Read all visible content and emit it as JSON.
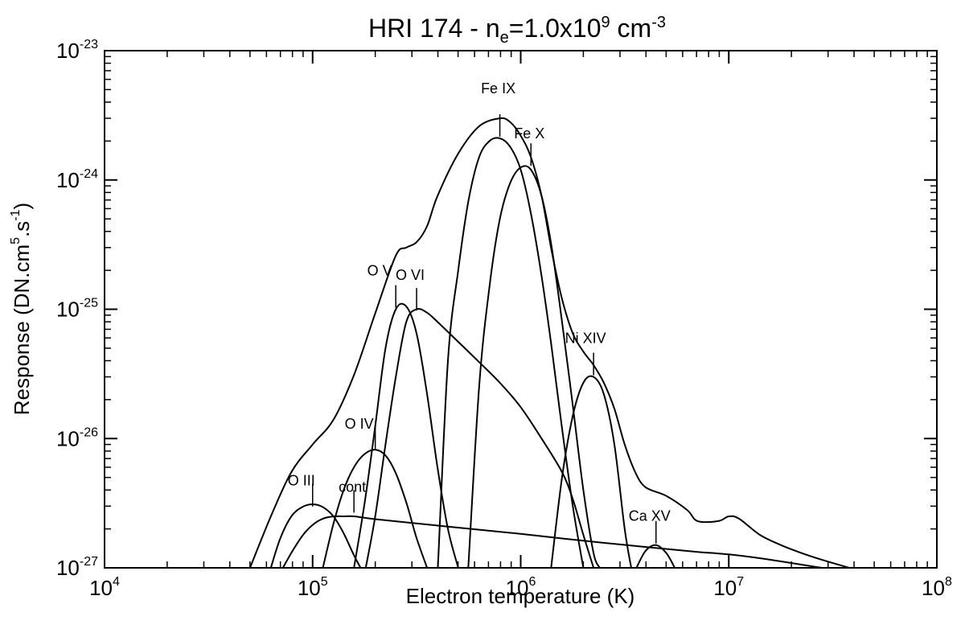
{
  "chart_data": {
    "type": "line",
    "title": {
      "parts": [
        {
          "text": "HRI 174 - n",
          "shift": "none"
        },
        {
          "text": "e",
          "shift": "sub"
        },
        {
          "text": "=1.0x10",
          "shift": "none"
        },
        {
          "text": "9",
          "shift": "super"
        },
        {
          "text": " cm",
          "shift": "none"
        },
        {
          "text": "-3",
          "shift": "super"
        }
      ]
    },
    "xlabel": "Electron temperature (K)",
    "ylabel": {
      "parts": [
        {
          "text": "Response (DN.cm",
          "shift": "none"
        },
        {
          "text": "5",
          "shift": "super"
        },
        {
          "text": ".s",
          "shift": "none"
        },
        {
          "text": "-1",
          "shift": "super"
        },
        {
          "text": ")",
          "shift": "none"
        }
      ]
    },
    "x_scale": "log",
    "y_scale": "log",
    "xlim": [
      10000,
      100000000
    ],
    "ylim": [
      1e-27,
      1e-23
    ],
    "x_ticks": [
      {
        "value": 10000,
        "base": "10",
        "exp": "4"
      },
      {
        "value": 100000,
        "base": "10",
        "exp": "5"
      },
      {
        "value": 1000000,
        "base": "10",
        "exp": "6"
      },
      {
        "value": 10000000,
        "base": "10",
        "exp": "7"
      },
      {
        "value": 100000000,
        "base": "10",
        "exp": "8"
      }
    ],
    "y_ticks": [
      {
        "value": 1e-27,
        "base": "10",
        "exp": "-27"
      },
      {
        "value": 1e-26,
        "base": "10",
        "exp": "-26"
      },
      {
        "value": 1e-25,
        "base": "10",
        "exp": "-25"
      },
      {
        "value": 1e-24,
        "base": "10",
        "exp": "-24"
      },
      {
        "value": 1e-23,
        "base": "10",
        "exp": "-23"
      }
    ],
    "grid": false,
    "legend": "none",
    "series": [
      {
        "kind": "total",
        "x": [
          50000,
          63000,
          79000,
          100000,
          126000,
          158000,
          200000,
          251000,
          282000,
          316000,
          355000,
          398000,
          501000,
          631000,
          794000,
          891000,
          1000000,
          1120000,
          1260000,
          1410000,
          1580000,
          1780000,
          2000000,
          2240000,
          2510000,
          2820000,
          3160000,
          3550000,
          3980000,
          5010000,
          6310000,
          7080000,
          8910000,
          10000000,
          11200000,
          14100000,
          17800000,
          22400000,
          28200000,
          38000000
        ],
        "y": [
          1e-27,
          2.5e-27,
          5.5e-27,
          9e-27,
          1.4e-26,
          3.1e-26,
          9.3e-26,
          2.6e-25,
          3e-25,
          3.3e-25,
          4.4e-25,
          7.5e-25,
          1.6e-24,
          2.6e-24,
          3e-24,
          2.8e-24,
          2.2e-24,
          1.5e-24,
          7.5e-25,
          2.8e-25,
          1.2e-25,
          6.5e-26,
          4.7e-26,
          3.7e-26,
          2.7e-26,
          1.7e-26,
          9e-27,
          5.5e-27,
          4.2e-27,
          3.6e-27,
          2.8e-27,
          2.3e-27,
          2.3e-27,
          2.5e-27,
          2.4e-27,
          1.8e-27,
          1.5e-27,
          1.3e-27,
          1.15e-27,
          1e-27
        ]
      },
      {
        "name": "O III",
        "x": [
          63000,
          70000,
          79000,
          89000,
          100000,
          112000,
          126000,
          141000,
          158000,
          170000
        ],
        "y": [
          1e-27,
          1.7e-27,
          2.5e-27,
          2.95e-27,
          3.1e-27,
          2.95e-27,
          2.5e-27,
          1.85e-27,
          1.25e-27,
          1e-27
        ]
      },
      {
        "name": "cont",
        "x": [
          72000,
          80000,
          90000,
          100000,
          112000,
          126000,
          141000,
          158000,
          200000,
          400000,
          1000000,
          2000000,
          4000000,
          7000000,
          10000000,
          15000000,
          28000000
        ],
        "y": [
          1e-27,
          1.35e-27,
          1.8e-27,
          2.15e-27,
          2.4e-27,
          2.5e-27,
          2.5e-27,
          2.5e-27,
          2.38e-27,
          2.12e-27,
          1.83e-27,
          1.62e-27,
          1.45e-27,
          1.33e-27,
          1.27e-27,
          1.17e-27,
          1e-27
        ]
      },
      {
        "name": "O IV",
        "x": [
          112000,
          126000,
          141000,
          158000,
          178000,
          200000,
          224000,
          251000,
          282000,
          316000,
          355000
        ],
        "y": [
          1e-27,
          2.2e-27,
          4e-27,
          6e-27,
          7.6e-27,
          8.2e-27,
          7.4e-27,
          5.4e-27,
          3.2e-27,
          1.7e-27,
          1e-27
        ]
      },
      {
        "name": "O V",
        "x": [
          158000,
          178000,
          200000,
          224000,
          251000,
          282000,
          316000,
          355000,
          398000,
          447000,
          501000
        ],
        "y": [
          1e-27,
          3.2e-27,
          1.25e-26,
          5e-26,
          1e-25,
          1.05e-25,
          6.5e-26,
          2.2e-26,
          6e-27,
          2e-27,
          1e-27
        ]
      },
      {
        "name": "O VI",
        "x": [
          180000,
          200000,
          224000,
          251000,
          282000,
          316000,
          355000,
          398000,
          501000,
          631000,
          794000,
          1000000,
          1260000,
          1580000,
          1780000,
          2000000,
          2240000
        ],
        "y": [
          1e-27,
          2.5e-27,
          9e-27,
          3e-26,
          8e-26,
          1e-25,
          9.4e-26,
          8e-26,
          5.6e-26,
          3.9e-26,
          2.7e-26,
          1.75e-26,
          1e-26,
          5.5e-27,
          3.4e-27,
          1.8e-27,
          1e-27
        ]
      },
      {
        "name": "Fe IX",
        "x": [
          400000,
          447000,
          501000,
          562000,
          631000,
          708000,
          794000,
          891000,
          1000000,
          1120000,
          1260000,
          1410000,
          1580000,
          1780000,
          2000000
        ],
        "y": [
          1e-27,
          4e-26,
          2e-25,
          7e-25,
          1.5e-24,
          2e-24,
          2.1e-24,
          1.8e-24,
          1.2e-24,
          5.5e-25,
          1.8e-25,
          5e-26,
          1.2e-26,
          3e-27,
          1e-27
        ]
      },
      {
        "name": "Fe X",
        "x": [
          560000,
          631000,
          708000,
          794000,
          891000,
          1000000,
          1120000,
          1260000,
          1410000,
          1580000,
          1780000,
          2000000,
          2240000,
          2400000
        ],
        "y": [
          1e-27,
          2.5e-26,
          1.5e-25,
          5e-25,
          9.5e-25,
          1.25e-24,
          1.2e-24,
          7.5e-25,
          3e-25,
          8e-26,
          1.8e-26,
          4e-27,
          1.3e-27,
          1e-27
        ]
      },
      {
        "name": "Ni XIV",
        "x": [
          1400000,
          1580000,
          1780000,
          2000000,
          2240000,
          2510000,
          2820000,
          3160000,
          3400000
        ],
        "y": [
          1e-27,
          5e-27,
          1.5e-26,
          2.7e-26,
          3e-26,
          2.2e-26,
          9e-27,
          2e-27,
          1e-27
        ]
      },
      {
        "name": "Ca XV",
        "x": [
          3600000,
          3980000,
          4470000,
          5010000,
          5500000
        ],
        "y": [
          1e-27,
          1.35e-27,
          1.5e-27,
          1.3e-27,
          1e-27
        ]
      }
    ],
    "annotations": [
      {
        "text": "O III",
        "x": 100000,
        "tip_y": 2.9e-27
      },
      {
        "text": "cont",
        "x": 158000,
        "tip_y": 2.6e-27
      },
      {
        "text": "O IV",
        "x": 200000,
        "tip_y": 8e-27
      },
      {
        "text": "O V",
        "x": 251000,
        "tip_y": 1e-25
      },
      {
        "text": "O VI",
        "x": 316000,
        "tip_y": 9.5e-26
      },
      {
        "text": "Fe IX",
        "x": 794000,
        "tip_y": 2.1e-24
      },
      {
        "text": "Fe X",
        "x": 1120000,
        "tip_y": 1.25e-24
      },
      {
        "text": "Ni XIV",
        "x": 2240000,
        "tip_y": 3e-26
      },
      {
        "text": "Ca XV",
        "x": 4470000,
        "tip_y": 1.5e-27
      }
    ]
  }
}
